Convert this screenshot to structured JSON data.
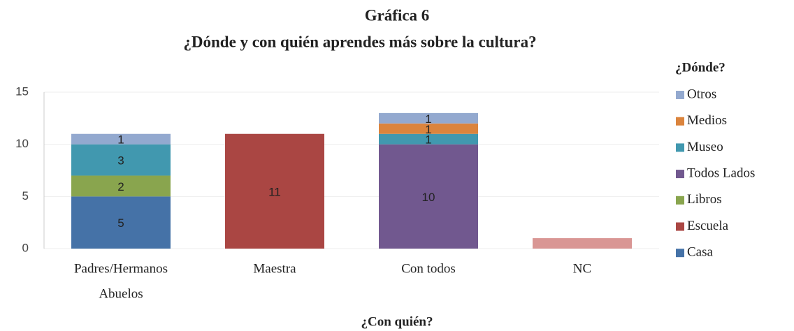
{
  "chart_data": {
    "type": "stacked_bar",
    "title": "Gráfica 6",
    "subtitle": "¿Dónde y con quién aprendes más sobre la cultura?",
    "x_label": "¿Con quién?",
    "legend_title": "¿Dónde?",
    "categories": [
      [
        "Padres/Hermanos",
        "Abuelos"
      ],
      "Maestra",
      "Con todos",
      "NC"
    ],
    "series": [
      {
        "name": "Casa",
        "color": "#4572a7",
        "values": [
          5,
          0,
          0,
          0
        ],
        "value_labels": [
          "5",
          null,
          null,
          null
        ]
      },
      {
        "name": "Escuela",
        "color": "#aa4643",
        "colors": [
          "#aa4643",
          "#aa4643",
          "#aa4643",
          "#d99694"
        ],
        "values": [
          0,
          11,
          0,
          1
        ],
        "value_labels": [
          null,
          "11",
          null,
          null
        ]
      },
      {
        "name": "Libros",
        "color": "#89a54e",
        "values": [
          2,
          0,
          0,
          0
        ],
        "value_labels": [
          "2",
          null,
          null,
          null
        ]
      },
      {
        "name": "Todos Lados",
        "color": "#71588f",
        "values": [
          0,
          0,
          10,
          0
        ],
        "value_labels": [
          null,
          null,
          "10",
          null
        ]
      },
      {
        "name": "Museo",
        "color": "#4198af",
        "values": [
          3,
          0,
          1,
          0
        ],
        "value_labels": [
          "3",
          null,
          "1",
          null
        ]
      },
      {
        "name": "Medios",
        "color": "#db843d",
        "values": [
          0,
          0,
          1,
          0
        ],
        "value_labels": [
          null,
          null,
          "1",
          null
        ]
      },
      {
        "name": "Otros",
        "color": "#93a9cf",
        "values": [
          1,
          0,
          1,
          0
        ],
        "value_labels": [
          "1",
          null,
          "1",
          null
        ]
      }
    ],
    "ylim": [
      0,
      15
    ],
    "yticks": [
      0,
      5,
      10,
      15
    ],
    "grid": true,
    "legend": "right"
  }
}
